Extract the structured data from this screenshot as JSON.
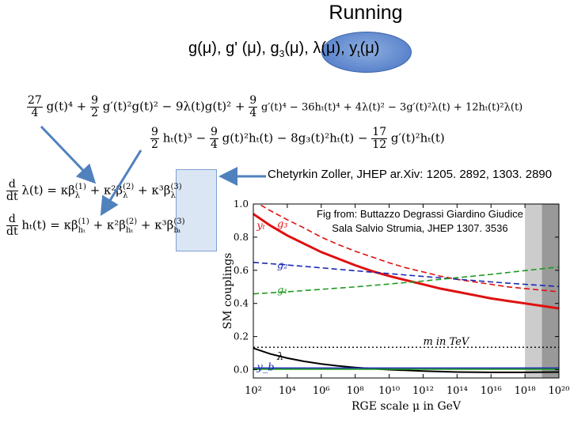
{
  "slide": {
    "title": "Running",
    "couplings_part1": "g(μ), g' (μ), g",
    "couplings_sub3": "3",
    "couplings_part2": "(μ), λ(μ), y",
    "couplings_subt": "t",
    "couplings_part3": "(μ)",
    "citation": "Chetyrkin Zoller, JHEP ar.Xiv: 1205. 2892, 1303. 2890",
    "fig_credit_line1": "Fig from: Buttazzo Degrassi Giardino Giudice",
    "fig_credit_line2": "Sala Salvio Strumia, JHEP 1307. 3536"
  },
  "equations": {
    "line1_coef1_num": "27",
    "line1_coef1_den": "4",
    "line1_t1": "g(t)⁴ +",
    "line1_coef2_num": "9",
    "line1_coef2_den": "2",
    "line1_t2": "g′(t)²g(t)² − 9λ(t)g(t)² +",
    "line1_coef3_num": "9",
    "line1_coef3_den": "4",
    "line1_t3": "g′(t)⁴ − 36hₜ(t)⁴ + 4λ(t)² − 3g′(t)²λ(t) + 12hₜ(t)²λ(t)",
    "line2_coef1_num": "9",
    "line2_coef1_den": "2",
    "line2_t1": "hₜ(t)³ −",
    "line2_coef2_num": "9",
    "line2_coef2_den": "4",
    "line2_t2": "g(t)²hₜ(t) − 8g₃(t)²hₜ(t) −",
    "line2_coef3_num": "17",
    "line2_coef3_den": "12",
    "line2_t3": "g′(t)²hₜ(t)",
    "rge1_num": "d",
    "rge1_den": "dt",
    "rge1_lhs": "λ(t) = κβ",
    "rge1_sup1": "(1)",
    "rge1_sub1": "λ",
    "rge1_mid": " + κ²β",
    "rge1_sup2": "(2)",
    "rge1_sub2": "λ",
    "rge1_end": " + κ³β",
    "rge1_sup3": "(3)",
    "rge1_sub3": "λ",
    "rge2_num": "d",
    "rge2_den": "dt",
    "rge2_lhs": "hₜ(t) = κβ",
    "rge2_sup1": "(1)",
    "rge2_sub1": "hₜ",
    "rge2_mid": " + κ²β",
    "rge2_sup2": "(2)",
    "rge2_sub2": "hₜ",
    "rge2_end": " + κ³β",
    "rge2_sup3": "(3)",
    "rge2_sub3": "hₜ"
  },
  "chart_data": {
    "type": "line",
    "title": "",
    "xlabel": "RGE scale μ in GeV",
    "ylabel": "SM couplings",
    "x_scale": "log10",
    "xlim": [
      100,
      1e+20
    ],
    "ylim": [
      -0.05,
      1.0
    ],
    "x_ticks": [
      100,
      10000,
      1000000,
      100000000,
      10000000000.0,
      1000000000000.0,
      100000000000000.0,
      1e+16,
      1e+18,
      1e+20
    ],
    "x_tick_labels": [
      "10²",
      "10⁴",
      "10⁶",
      "10⁸",
      "10¹⁰",
      "10¹²",
      "10¹⁴",
      "10¹⁶",
      "10¹⁸",
      "10²⁰"
    ],
    "y_ticks": [
      0.0,
      0.2,
      0.4,
      0.6,
      0.8,
      1.0
    ],
    "y_tick_labels": [
      "0.0",
      "0.2",
      "0.4",
      "0.6",
      "0.8",
      "1.0"
    ],
    "shaded_bands": [
      {
        "from": 1e+18,
        "to": 1e+19,
        "color": "#cccccc"
      },
      {
        "from": 1e+19,
        "to": 1e+20,
        "color": "#999999"
      }
    ],
    "series": [
      {
        "name": "yt",
        "color": "#e01010",
        "dash": "solid",
        "width": 3,
        "x": [
          100,
          1000,
          10000,
          100000,
          1000000,
          10000000,
          100000000,
          1000000000.0,
          10000000000.0,
          100000000000.0,
          1000000000000.0,
          10000000000000.0,
          100000000000000.0,
          1000000000000000.0,
          1e+16,
          1e+17,
          1e+18,
          1e+19,
          1e+20
        ],
        "y": [
          0.94,
          0.87,
          0.81,
          0.76,
          0.71,
          0.67,
          0.63,
          0.595,
          0.565,
          0.54,
          0.515,
          0.49,
          0.47,
          0.45,
          0.43,
          0.415,
          0.4,
          0.385,
          0.37
        ]
      },
      {
        "name": "g3",
        "color": "#e01010",
        "dash": "dashed",
        "width": 1.6,
        "x": [
          100,
          1000,
          10000,
          100000,
          1000000,
          10000000,
          100000000,
          1000000000.0,
          10000000000.0,
          100000000000.0,
          1000000000000.0,
          10000000000000.0,
          100000000000000.0,
          1000000000000000.0,
          1e+16,
          1e+17,
          1e+18,
          1e+19,
          1e+20
        ],
        "y": [
          1.02,
          0.96,
          0.905,
          0.855,
          0.8,
          0.755,
          0.715,
          0.68,
          0.645,
          0.615,
          0.59,
          0.565,
          0.545,
          0.53,
          0.515,
          0.5,
          0.49,
          0.48,
          0.47
        ]
      },
      {
        "name": "g2",
        "color": "#1a2bb5",
        "dash": "dashed",
        "width": 1.6,
        "x": [
          100,
          10000.0,
          1000000.0,
          100000000.0,
          10000000000.0,
          1000000000000.0,
          100000000000000.0,
          1e+16,
          1e+18,
          1e+20
        ],
        "y": [
          0.648,
          0.632,
          0.615,
          0.597,
          0.58,
          0.563,
          0.546,
          0.53,
          0.515,
          0.502
        ]
      },
      {
        "name": "g1",
        "color": "#1f9a1f",
        "dash": "dashed",
        "width": 1.6,
        "x": [
          100,
          10000.0,
          1000000.0,
          100000000.0,
          10000000000.0,
          1000000000000.0,
          100000000000000.0,
          1e+16,
          1e+18,
          1e+20
        ],
        "y": [
          0.458,
          0.47,
          0.485,
          0.5,
          0.517,
          0.535,
          0.555,
          0.575,
          0.598,
          0.62
        ]
      },
      {
        "name": "m in TeV",
        "color": "#000000",
        "dash": "dotted",
        "width": 1.4,
        "x": [
          100,
          1e+20
        ],
        "y": [
          0.135,
          0.135
        ]
      },
      {
        "name": "λ",
        "color": "#000000",
        "dash": "solid",
        "width": 2,
        "x": [
          100,
          1000,
          10000,
          100000,
          1000000,
          10000000,
          100000000,
          1000000000.0,
          10000000000.0,
          1000000000000.0,
          100000000000000.0,
          1e+16,
          1e+18,
          1e+20
        ],
        "y": [
          0.13,
          0.095,
          0.07,
          0.05,
          0.035,
          0.023,
          0.013,
          0.006,
          0.0,
          -0.008,
          -0.014,
          -0.016,
          -0.016,
          -0.014
        ]
      },
      {
        "name": "yb",
        "color": "#1a2bb5",
        "dash": "solid",
        "width": 1.6,
        "x": [
          100,
          1e+20
        ],
        "y": [
          0.01,
          0.01
        ]
      },
      {
        "name": "",
        "color": "#1f9a1f",
        "dash": "solid",
        "width": 1.6,
        "x": [
          100,
          1e+20
        ],
        "y": [
          0.003,
          0.003
        ]
      }
    ],
    "annotations": [
      {
        "text": "yₜ",
        "x": 160,
        "y": 0.85,
        "color": "#e01010"
      },
      {
        "text": "g₃",
        "x": 2500,
        "y": 0.86,
        "color": "#e01010"
      },
      {
        "text": "g₂",
        "x": 2500,
        "y": 0.61,
        "color": "#1a2bb5"
      },
      {
        "text": "g₁",
        "x": 2500,
        "y": 0.46,
        "color": "#1f9a1f"
      },
      {
        "text": "m in TeV",
        "x": 1000000000000.0,
        "y": 0.15,
        "color": "#000000"
      },
      {
        "text": "λ",
        "x": 2500,
        "y": 0.06,
        "color": "#000000"
      },
      {
        "text": "y_b",
        "x": 160,
        "y": -0.005,
        "color": "#1a2bb5"
      }
    ]
  }
}
